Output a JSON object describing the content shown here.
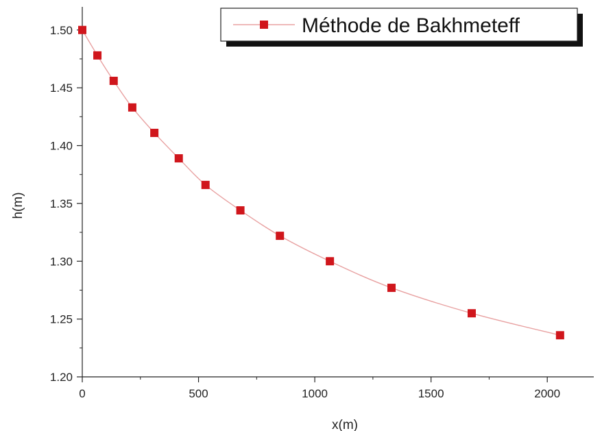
{
  "chart_data": {
    "type": "line",
    "xlabel": "x(m)",
    "ylabel": "h(m)",
    "xlim": [
      0,
      2200
    ],
    "ylim": [
      1.2,
      1.52
    ],
    "x_ticks": [
      0,
      500,
      1000,
      1500,
      2000
    ],
    "y_ticks": [
      1.2,
      1.25,
      1.3,
      1.35,
      1.4,
      1.45,
      1.5
    ],
    "x_tick_labels": [
      "0",
      "500",
      "1000",
      "1500",
      "2000"
    ],
    "y_tick_labels": [
      "1.20",
      "1.25",
      "1.30",
      "1.35",
      "1.40",
      "1.45",
      "1.50"
    ],
    "grid": false,
    "legend_position": "top-right",
    "series": [
      {
        "name": "Méthode de Bakhmeteff",
        "marker": "square",
        "line_color": "#e8a0a0",
        "marker_color": "#d0161c",
        "x": [
          0,
          65,
          135,
          215,
          310,
          415,
          530,
          680,
          850,
          1065,
          1330,
          1675,
          2055
        ],
        "y": [
          1.5,
          1.478,
          1.456,
          1.433,
          1.411,
          1.389,
          1.366,
          1.344,
          1.322,
          1.3,
          1.277,
          1.255,
          1.236
        ]
      }
    ]
  }
}
